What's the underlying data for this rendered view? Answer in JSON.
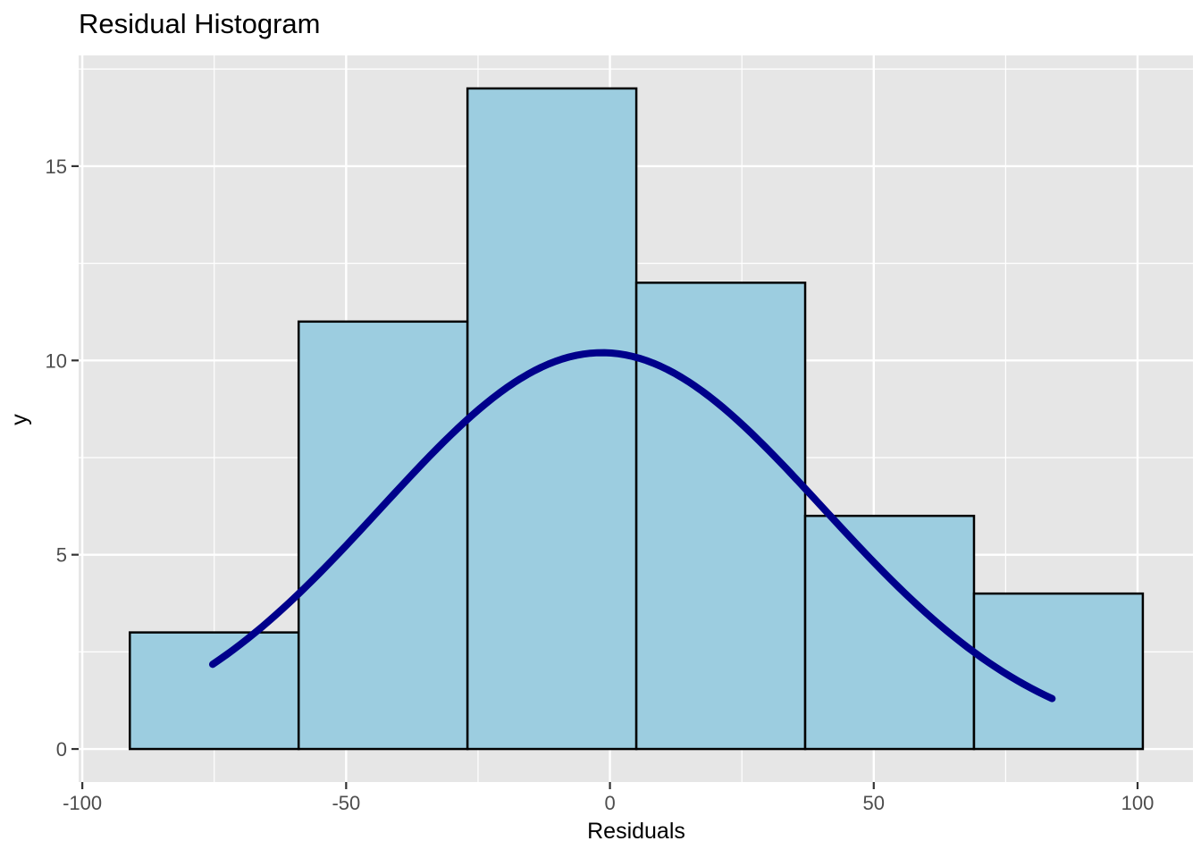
{
  "chart_data": {
    "type": "bar",
    "subtype": "histogram_with_density_curve",
    "title": "Residual Histogram",
    "xlabel": "Residuals",
    "ylabel": "y",
    "bin_edges": [
      -91,
      -59,
      -27,
      5,
      37,
      69,
      101
    ],
    "counts": [
      3,
      11,
      17,
      12,
      6,
      4
    ],
    "x_ticks": [
      "-100",
      "-50",
      "0",
      "50",
      "100"
    ],
    "x_tick_values": [
      -100,
      -50,
      0,
      50,
      100
    ],
    "x_minor_values": [
      -75,
      -25,
      25,
      75
    ],
    "y_ticks": [
      "0",
      "5",
      "10",
      "15"
    ],
    "y_tick_values": [
      0,
      5,
      10,
      15
    ],
    "y_minor_values": [
      2.5,
      7.5,
      12.5,
      17.5
    ],
    "xlim": [
      -100.7,
      110.5
    ],
    "ylim": [
      -0.85,
      17.85
    ],
    "grid": true,
    "legend": "none",
    "curve": {
      "shape": "gaussian",
      "amplitude": 10.2,
      "mean": -1.5,
      "sd": 42,
      "x_start": -75.3,
      "x_end": 83.8
    }
  },
  "style": {
    "panel_background": "#E6E6E6",
    "grid_color": "#FFFFFF",
    "bar_fill": "#9CCDE0",
    "bar_stroke": "#000000",
    "curve_color": "#00008B",
    "tick_mark_color": "#333333",
    "tick_label_color": "#4D4D4D",
    "title_color": "#000000"
  }
}
